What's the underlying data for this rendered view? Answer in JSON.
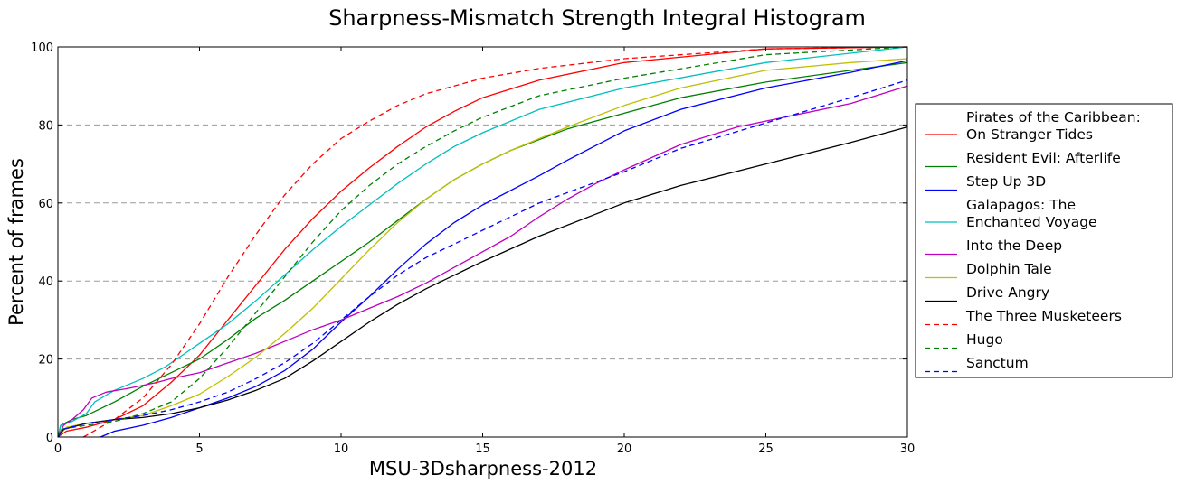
{
  "chart_data": {
    "type": "line",
    "title": "Sharpness-Mismatch Strength Integral Histogram",
    "xlabel": "MSU-3Dsharpness-2012",
    "ylabel": "Percent of frames",
    "xlim": [
      0,
      30
    ],
    "ylim": [
      0,
      100
    ],
    "x_ticks": [
      "0",
      "5",
      "10",
      "15",
      "20",
      "25",
      "30"
    ],
    "y_ticks": [
      "0",
      "20",
      "40",
      "60",
      "80",
      "100"
    ],
    "grid": "horizontal dashed",
    "legend_position": "right, outside plot",
    "series": [
      {
        "name_lines": [
          "Pirates of the Caribbean:",
          "On Stranger Tides"
        ],
        "color": "#ff0000",
        "dash": "solid",
        "points": [
          [
            0,
            0
          ],
          [
            0.3,
            1.5
          ],
          [
            1,
            2.5
          ],
          [
            2,
            4.5
          ],
          [
            3,
            8
          ],
          [
            4,
            14
          ],
          [
            5,
            21
          ],
          [
            6,
            30
          ],
          [
            7,
            39
          ],
          [
            8,
            48
          ],
          [
            9,
            56
          ],
          [
            10,
            63
          ],
          [
            11,
            69
          ],
          [
            12,
            74.5
          ],
          [
            13,
            79.5
          ],
          [
            14,
            83.5
          ],
          [
            15,
            87
          ],
          [
            17,
            91.5
          ],
          [
            20,
            96
          ],
          [
            25,
            99.5
          ],
          [
            30,
            100
          ]
        ]
      },
      {
        "name_lines": [
          "Resident Evil: Afterlife"
        ],
        "color": "#008000",
        "dash": "solid",
        "points": [
          [
            0,
            0
          ],
          [
            0.1,
            3
          ],
          [
            0.5,
            4.5
          ],
          [
            1,
            5.5
          ],
          [
            2,
            9
          ],
          [
            3,
            13
          ],
          [
            4,
            16.5
          ],
          [
            5,
            20
          ],
          [
            6,
            25
          ],
          [
            7,
            30.5
          ],
          [
            8,
            35
          ],
          [
            9,
            40
          ],
          [
            10,
            45
          ],
          [
            11,
            50
          ],
          [
            12,
            55.5
          ],
          [
            13,
            61
          ],
          [
            14,
            66
          ],
          [
            15,
            70
          ],
          [
            16,
            73.5
          ],
          [
            18,
            79
          ],
          [
            20,
            83
          ],
          [
            22,
            87
          ],
          [
            25,
            91
          ],
          [
            28,
            94
          ],
          [
            30,
            96
          ]
        ]
      },
      {
        "name_lines": [
          "Step Up 3D"
        ],
        "color": "#0000ff",
        "dash": "solid",
        "points": [
          [
            1.5,
            0
          ],
          [
            2,
            1.5
          ],
          [
            3,
            3
          ],
          [
            4,
            5
          ],
          [
            5,
            7.5
          ],
          [
            6,
            10
          ],
          [
            7,
            13
          ],
          [
            8,
            17
          ],
          [
            9,
            22.5
          ],
          [
            10,
            29.5
          ],
          [
            11,
            36
          ],
          [
            12,
            43
          ],
          [
            13,
            49.5
          ],
          [
            14,
            55
          ],
          [
            15,
            59.5
          ],
          [
            17,
            67
          ],
          [
            18,
            71
          ],
          [
            20,
            78.5
          ],
          [
            22,
            84
          ],
          [
            25,
            89.5
          ],
          [
            28,
            93.5
          ],
          [
            30,
            96.5
          ]
        ]
      },
      {
        "name_lines": [
          "Galapagos: The",
          "Enchanted Voyage"
        ],
        "color": "#00bfbf",
        "dash": "solid",
        "points": [
          [
            0,
            0
          ],
          [
            0.1,
            3
          ],
          [
            0.5,
            4
          ],
          [
            1,
            6
          ],
          [
            1.3,
            9
          ],
          [
            2,
            12
          ],
          [
            3,
            15
          ],
          [
            3.8,
            18
          ],
          [
            4,
            19
          ],
          [
            5,
            24
          ],
          [
            6,
            29
          ],
          [
            7,
            35
          ],
          [
            8,
            41.5
          ],
          [
            9,
            48
          ],
          [
            10,
            54
          ],
          [
            11,
            59.5
          ],
          [
            12,
            65
          ],
          [
            13,
            70
          ],
          [
            14,
            74.5
          ],
          [
            15,
            78
          ],
          [
            17,
            84
          ],
          [
            20,
            89.5
          ],
          [
            25,
            96
          ],
          [
            30,
            100
          ]
        ]
      },
      {
        "name_lines": [
          "Into the Deep"
        ],
        "color": "#bf00bf",
        "dash": "solid",
        "points": [
          [
            0,
            0
          ],
          [
            0.2,
            3
          ],
          [
            0.5,
            4.5
          ],
          [
            0.9,
            7
          ],
          [
            1.2,
            10
          ],
          [
            1.7,
            11.5
          ],
          [
            2.5,
            12.5
          ],
          [
            3.5,
            14
          ],
          [
            4,
            15
          ],
          [
            5,
            16.5
          ],
          [
            6,
            19
          ],
          [
            7,
            21.5
          ],
          [
            8,
            24.5
          ],
          [
            9,
            27.5
          ],
          [
            10,
            30
          ],
          [
            11,
            33
          ],
          [
            12,
            36
          ],
          [
            13,
            39.5
          ],
          [
            14,
            43.5
          ],
          [
            15,
            47.5
          ],
          [
            16,
            51.5
          ],
          [
            17,
            56.5
          ],
          [
            18,
            61
          ],
          [
            19,
            65
          ],
          [
            20,
            68.5
          ],
          [
            22,
            75
          ],
          [
            24,
            79.5
          ],
          [
            26,
            82.5
          ],
          [
            28,
            85.5
          ],
          [
            30,
            90
          ]
        ]
      },
      {
        "name_lines": [
          "Dolphin Tale"
        ],
        "color": "#bfbf00",
        "dash": "solid",
        "points": [
          [
            0,
            0
          ],
          [
            0.3,
            2.5
          ],
          [
            1,
            3.5
          ],
          [
            2,
            4.5
          ],
          [
            3,
            5.5
          ],
          [
            4,
            8
          ],
          [
            5,
            11
          ],
          [
            6,
            15.5
          ],
          [
            7,
            20.5
          ],
          [
            8,
            26.5
          ],
          [
            9,
            33
          ],
          [
            10,
            40.5
          ],
          [
            11,
            48
          ],
          [
            12,
            55
          ],
          [
            13,
            61
          ],
          [
            14,
            66
          ],
          [
            15,
            70
          ],
          [
            16,
            73.5
          ],
          [
            18,
            79.5
          ],
          [
            20,
            85
          ],
          [
            22,
            89.5
          ],
          [
            25,
            94
          ],
          [
            28,
            96
          ],
          [
            30,
            97
          ]
        ]
      },
      {
        "name_lines": [
          "Drive Angry"
        ],
        "color": "#000000",
        "dash": "solid",
        "points": [
          [
            0,
            0
          ],
          [
            0.2,
            2
          ],
          [
            1,
            3.5
          ],
          [
            2,
            4.5
          ],
          [
            3,
            5
          ],
          [
            4,
            6
          ],
          [
            5,
            7.5
          ],
          [
            6,
            9.5
          ],
          [
            7,
            12
          ],
          [
            8,
            15
          ],
          [
            9,
            19.5
          ],
          [
            10,
            24.5
          ],
          [
            11,
            29.5
          ],
          [
            12,
            34
          ],
          [
            13,
            38
          ],
          [
            14,
            41.5
          ],
          [
            15,
            45
          ],
          [
            17,
            51.5
          ],
          [
            20,
            60
          ],
          [
            22,
            64.5
          ],
          [
            25,
            70
          ],
          [
            28,
            75.5
          ],
          [
            30,
            79.5
          ]
        ]
      },
      {
        "name_lines": [
          "The Three Musketeers"
        ],
        "color": "#ff0000",
        "dash": "dashed",
        "points": [
          [
            0.9,
            0
          ],
          [
            1.5,
            2.5
          ],
          [
            2,
            4.5
          ],
          [
            3,
            10
          ],
          [
            4,
            18.5
          ],
          [
            5,
            29
          ],
          [
            6,
            41
          ],
          [
            7,
            52
          ],
          [
            8,
            62
          ],
          [
            9,
            70
          ],
          [
            10,
            76.5
          ],
          [
            11,
            81
          ],
          [
            12,
            85
          ],
          [
            13,
            88
          ],
          [
            14,
            90
          ],
          [
            15,
            92
          ],
          [
            17,
            94.5
          ],
          [
            20,
            97
          ],
          [
            25,
            99.5
          ],
          [
            30,
            100
          ]
        ]
      },
      {
        "name_lines": [
          "Hugo"
        ],
        "color": "#008000",
        "dash": "dashed",
        "points": [
          [
            0,
            0
          ],
          [
            0.1,
            2
          ],
          [
            1,
            3
          ],
          [
            2,
            4
          ],
          [
            3,
            6
          ],
          [
            4,
            9
          ],
          [
            5,
            15
          ],
          [
            6,
            23
          ],
          [
            7,
            32
          ],
          [
            8,
            41
          ],
          [
            9,
            50
          ],
          [
            10,
            58
          ],
          [
            11,
            64.5
          ],
          [
            12,
            70
          ],
          [
            13,
            74.5
          ],
          [
            14,
            78.5
          ],
          [
            15,
            82
          ],
          [
            17,
            87.5
          ],
          [
            20,
            92
          ],
          [
            25,
            98
          ],
          [
            30,
            100
          ]
        ]
      },
      {
        "name_lines": [
          "Sanctum"
        ],
        "color": "#0000ff",
        "dash": "dashed",
        "points": [
          [
            0,
            0
          ],
          [
            0.2,
            2
          ],
          [
            1,
            3.5
          ],
          [
            2,
            4.5
          ],
          [
            3,
            5.5
          ],
          [
            4,
            7
          ],
          [
            5,
            9
          ],
          [
            6,
            11.5
          ],
          [
            7,
            15
          ],
          [
            8,
            19
          ],
          [
            9,
            24
          ],
          [
            10,
            30
          ],
          [
            11,
            36
          ],
          [
            12,
            41.5
          ],
          [
            13,
            46
          ],
          [
            14,
            49.5
          ],
          [
            15,
            53
          ],
          [
            17,
            60
          ],
          [
            20,
            68
          ],
          [
            22,
            74
          ],
          [
            25,
            80.5
          ],
          [
            28,
            87
          ],
          [
            30,
            91.5
          ]
        ]
      }
    ]
  }
}
